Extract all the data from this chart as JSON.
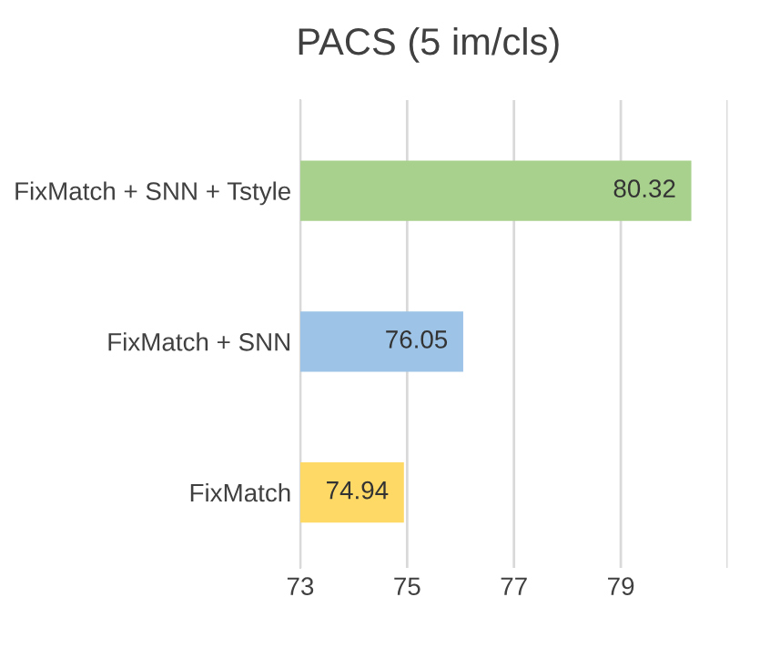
{
  "chart_data": {
    "type": "bar",
    "orientation": "horizontal",
    "title": "PACS (5 im/cls)",
    "categories": [
      "FixMatch + SNN + Tstyle",
      "FixMatch + SNN",
      "FixMatch"
    ],
    "values": [
      80.32,
      76.05,
      74.94
    ],
    "colors": [
      "#a9d18e",
      "#9dc3e6",
      "#ffd966"
    ],
    "xlim": [
      73,
      81
    ],
    "xticks": [
      73,
      75,
      77,
      79,
      {
        "value": 81,
        "label": null
      }
    ],
    "grid": "x",
    "data_labels": true,
    "legend": false
  }
}
